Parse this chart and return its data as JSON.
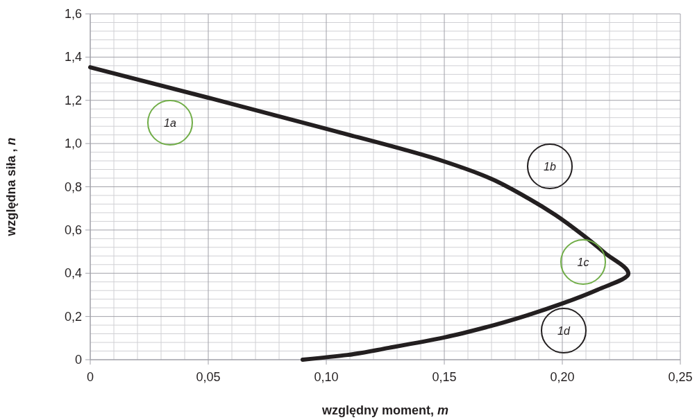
{
  "chart_data": {
    "type": "line",
    "xlabel": "względny moment, m",
    "ylabel": "względna siła , n",
    "x": [
      0,
      0.05,
      0.1,
      0.15,
      0.168,
      0.185,
      0.197,
      0.209,
      0.218,
      0.228,
      0.215,
      0.2,
      0.185,
      0.168,
      0.15,
      0.1265,
      0.109,
      0.09
    ],
    "series": [
      {
        "color": "#231f20",
        "values": [
          1.353,
          1.212,
          1.068,
          0.917,
          0.846,
          0.75,
          0.67,
          0.574,
          0.494,
          0.398,
          0.324,
          0.26,
          0.205,
          0.151,
          0.103,
          0.055,
          0.022,
          0
        ]
      }
    ],
    "xlim": [
      0,
      0.25
    ],
    "xticks": [
      0,
      {
        "value": 0.05,
        "label": "0,05"
      },
      {
        "value": 0.1,
        "label": "0,10"
      },
      {
        "value": 0.15,
        "label": "0,15"
      },
      {
        "value": 0.2,
        "label": "0,20"
      },
      {
        "value": 0.25,
        "label": "0,25"
      }
    ],
    "ylim": [
      0,
      1.6
    ],
    "yticks": [
      0,
      {
        "value": 0.2,
        "label": "0,2"
      },
      {
        "value": 0.4,
        "label": "0,4"
      },
      {
        "value": 0.6,
        "label": "0,6"
      },
      {
        "value": 0.8,
        "label": "0,8"
      },
      {
        "value": 1,
        "label": "1,0"
      },
      {
        "value": 1.2,
        "label": "1,2"
      },
      {
        "value": 1.4,
        "label": "1,4"
      },
      {
        "value": 1.6,
        "label": "1,6"
      }
    ],
    "grid": true,
    "marker": "none",
    "line_style": "solid",
    "annotations": [
      "1a",
      "1b",
      "1c",
      "1d"
    ]
  }
}
